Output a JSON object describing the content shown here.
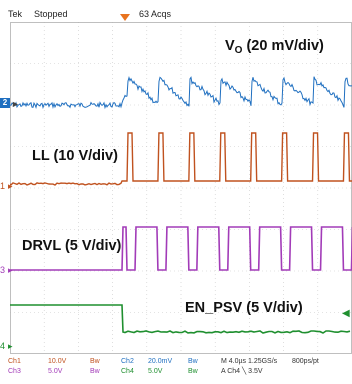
{
  "header": {
    "brand": "Tek",
    "status": "Stopped",
    "acquisitions": "63 Acqs"
  },
  "channels": [
    {
      "id": "1",
      "label": "LL (10 V/div)",
      "color": "#c0521f"
    },
    {
      "id": "2",
      "label_main": "V",
      "label_sub": "O",
      "label_rest": " (20 mV/div)",
      "color": "#1f6fc0"
    },
    {
      "id": "3",
      "label": "DRVL (5 V/div)",
      "color": "#a23bb8"
    },
    {
      "id": "4",
      "label": "EN_PSV (5 V/div)",
      "color": "#1f8f2f"
    }
  ],
  "footer": {
    "row1": [
      {
        "text": "Ch1",
        "color": "#c0521f"
      },
      {
        "text": "10.0V",
        "color": "#c0521f"
      },
      {
        "text": "Bw",
        "color": "#c0521f"
      },
      {
        "text": "Ch2",
        "color": "#1f6fc0"
      },
      {
        "text": "20.0mV",
        "color": "#1f6fc0"
      },
      {
        "text": "Bw",
        "color": "#1f6fc0"
      },
      {
        "text": "M 4.0µs 1.25GS/s",
        "color": "#333333"
      },
      {
        "text": "800ps/pt",
        "color": "#333333"
      }
    ],
    "row2": [
      {
        "text": "Ch3",
        "color": "#a23bb8"
      },
      {
        "text": "5.0V",
        "color": "#a23bb8"
      },
      {
        "text": "Bw",
        "color": "#a23bb8"
      },
      {
        "text": "Ch4",
        "color": "#1f8f2f"
      },
      {
        "text": "5.0V",
        "color": "#1f8f2f"
      },
      {
        "text": "Bw",
        "color": "#1f8f2f"
      },
      {
        "text": "A  Ch4  ╲  3.5V",
        "color": "#333333"
      }
    ]
  }
}
